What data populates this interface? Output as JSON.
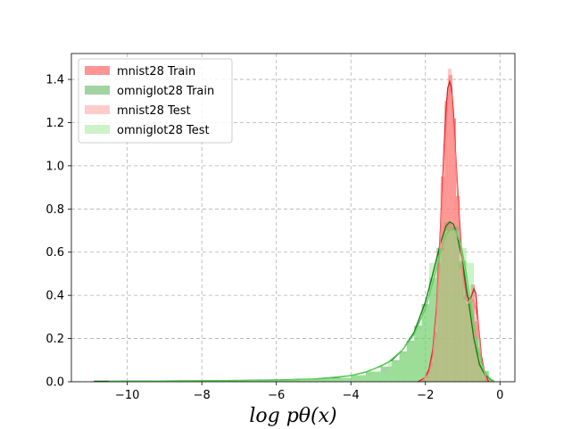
{
  "chart_data": {
    "type": "histogram-kde",
    "title": "",
    "xlabel": "log p_θ(x)",
    "xlabel_display": "log pθ(x)",
    "ylabel": "",
    "xlim": [
      -11.5,
      0.4
    ],
    "ylim": [
      0,
      1.52
    ],
    "xticks": [
      -10,
      -8,
      -6,
      -4,
      -2,
      0
    ],
    "xtick_labels": [
      "−10",
      "−8",
      "−6",
      "−4",
      "−2",
      "0"
    ],
    "yticks": [
      0.0,
      0.2,
      0.4,
      0.6,
      0.8,
      1.0,
      1.2,
      1.4
    ],
    "ytick_labels": [
      "0.0",
      "0.2",
      "0.4",
      "0.6",
      "0.8",
      "1.0",
      "1.2",
      "1.4"
    ],
    "grid": true,
    "legend_position": "top-left",
    "series": [
      {
        "name": "mnist28 Train",
        "color": "#ff4c4c",
        "kde_color": "#d62728",
        "fill_opacity": 0.6,
        "bins": [
          {
            "x0": -2.08,
            "x1": -1.98,
            "y": 0.01
          },
          {
            "x0": -1.98,
            "x1": -1.88,
            "y": 0.03
          },
          {
            "x0": -1.88,
            "x1": -1.78,
            "y": 0.09
          },
          {
            "x0": -1.78,
            "x1": -1.68,
            "y": 0.23
          },
          {
            "x0": -1.68,
            "x1": -1.58,
            "y": 0.55
          },
          {
            "x0": -1.58,
            "x1": -1.48,
            "y": 0.95
          },
          {
            "x0": -1.48,
            "x1": -1.38,
            "y": 1.3
          },
          {
            "x0": -1.38,
            "x1": -1.28,
            "y": 1.42
          },
          {
            "x0": -1.28,
            "x1": -1.18,
            "y": 1.22
          },
          {
            "x0": -1.18,
            "x1": -1.08,
            "y": 0.86
          },
          {
            "x0": -1.08,
            "x1": -0.98,
            "y": 0.55
          },
          {
            "x0": -0.98,
            "x1": -0.88,
            "y": 0.4
          },
          {
            "x0": -0.88,
            "x1": -0.78,
            "y": 0.36
          },
          {
            "x0": -0.78,
            "x1": -0.68,
            "y": 0.45
          },
          {
            "x0": -0.68,
            "x1": -0.58,
            "y": 0.28
          },
          {
            "x0": -0.58,
            "x1": -0.48,
            "y": 0.1
          },
          {
            "x0": -0.48,
            "x1": -0.38,
            "y": 0.03
          }
        ],
        "kde": {
          "x": [
            -2.2,
            -2.0,
            -1.9,
            -1.8,
            -1.7,
            -1.6,
            -1.5,
            -1.45,
            -1.4,
            -1.35,
            -1.3,
            -1.25,
            -1.2,
            -1.1,
            -1.0,
            -0.9,
            -0.8,
            -0.7,
            -0.65,
            -0.6,
            -0.5,
            -0.4,
            -0.3
          ],
          "y": [
            0.0,
            0.02,
            0.06,
            0.15,
            0.35,
            0.7,
            1.08,
            1.25,
            1.36,
            1.39,
            1.36,
            1.25,
            1.08,
            0.78,
            0.52,
            0.4,
            0.38,
            0.43,
            0.41,
            0.3,
            0.12,
            0.03,
            0.0
          ]
        }
      },
      {
        "name": "omniglot28 Train",
        "color": "#2ca02c",
        "kde_color": "#1a7a1a",
        "fill_opacity": 0.45,
        "bins": [
          {
            "x0": -10.9,
            "x1": -8.0,
            "y": 0.002
          },
          {
            "x0": -8.0,
            "x1": -6.0,
            "y": 0.004
          },
          {
            "x0": -6.0,
            "x1": -5.0,
            "y": 0.008
          },
          {
            "x0": -5.0,
            "x1": -4.5,
            "y": 0.012
          },
          {
            "x0": -4.5,
            "x1": -4.0,
            "y": 0.018
          },
          {
            "x0": -4.0,
            "x1": -3.6,
            "y": 0.03
          },
          {
            "x0": -3.6,
            "x1": -3.2,
            "y": 0.045
          },
          {
            "x0": -3.2,
            "x1": -2.9,
            "y": 0.07
          },
          {
            "x0": -2.9,
            "x1": -2.7,
            "y": 0.1
          },
          {
            "x0": -2.7,
            "x1": -2.5,
            "y": 0.14
          },
          {
            "x0": -2.5,
            "x1": -2.3,
            "y": 0.19
          },
          {
            "x0": -2.3,
            "x1": -2.1,
            "y": 0.26
          },
          {
            "x0": -2.1,
            "x1": -1.9,
            "y": 0.36
          },
          {
            "x0": -1.9,
            "x1": -1.7,
            "y": 0.48
          },
          {
            "x0": -1.7,
            "x1": -1.5,
            "y": 0.62
          },
          {
            "x0": -1.5,
            "x1": -1.3,
            "y": 0.74
          },
          {
            "x0": -1.3,
            "x1": -1.1,
            "y": 0.72
          },
          {
            "x0": -1.1,
            "x1": -0.9,
            "y": 0.56
          },
          {
            "x0": -0.9,
            "x1": -0.7,
            "y": 0.36
          },
          {
            "x0": -0.7,
            "x1": -0.5,
            "y": 0.16
          },
          {
            "x0": -0.5,
            "x1": -0.3,
            "y": 0.05
          },
          {
            "x0": -0.3,
            "x1": -0.15,
            "y": 0.01
          }
        ],
        "kde": {
          "x": [
            -10.9,
            -8.0,
            -6.0,
            -5.0,
            -4.5,
            -4.0,
            -3.6,
            -3.2,
            -2.9,
            -2.6,
            -2.3,
            -2.0,
            -1.8,
            -1.6,
            -1.45,
            -1.35,
            -1.25,
            -1.15,
            -1.0,
            -0.85,
            -0.7,
            -0.55,
            -0.4,
            -0.25,
            -0.15
          ],
          "y": [
            0.002,
            0.004,
            0.008,
            0.013,
            0.018,
            0.028,
            0.045,
            0.072,
            0.1,
            0.15,
            0.23,
            0.37,
            0.5,
            0.64,
            0.72,
            0.74,
            0.73,
            0.68,
            0.55,
            0.38,
            0.2,
            0.08,
            0.03,
            0.01,
            0.0
          ]
        }
      },
      {
        "name": "mnist28 Test",
        "color": "#ff9a96",
        "kde_color": "#ff8080",
        "fill_opacity": 0.5,
        "bins": [
          {
            "x0": -2.0,
            "x1": -1.9,
            "y": 0.02
          },
          {
            "x0": -1.9,
            "x1": -1.8,
            "y": 0.07
          },
          {
            "x0": -1.8,
            "x1": -1.7,
            "y": 0.2
          },
          {
            "x0": -1.7,
            "x1": -1.6,
            "y": 0.5
          },
          {
            "x0": -1.6,
            "x1": -1.5,
            "y": 0.92
          },
          {
            "x0": -1.5,
            "x1": -1.4,
            "y": 1.28
          },
          {
            "x0": -1.4,
            "x1": -1.3,
            "y": 1.45
          },
          {
            "x0": -1.3,
            "x1": -1.2,
            "y": 1.2
          },
          {
            "x0": -1.2,
            "x1": -1.1,
            "y": 0.82
          },
          {
            "x0": -1.1,
            "x1": -1.0,
            "y": 0.52
          },
          {
            "x0": -1.0,
            "x1": -0.9,
            "y": 0.38
          },
          {
            "x0": -0.9,
            "x1": -0.8,
            "y": 0.35
          },
          {
            "x0": -0.8,
            "x1": -0.7,
            "y": 0.4
          },
          {
            "x0": -0.7,
            "x1": -0.6,
            "y": 0.3
          },
          {
            "x0": -0.6,
            "x1": -0.5,
            "y": 0.12
          },
          {
            "x0": -0.5,
            "x1": -0.4,
            "y": 0.04
          }
        ],
        "kde": {
          "x": [
            -2.1,
            -1.9,
            -1.8,
            -1.7,
            -1.6,
            -1.5,
            -1.4,
            -1.35,
            -1.3,
            -1.2,
            -1.1,
            -1.0,
            -0.9,
            -0.8,
            -0.7,
            -0.6,
            -0.5,
            -0.35
          ],
          "y": [
            0.0,
            0.04,
            0.12,
            0.32,
            0.66,
            1.02,
            1.3,
            1.36,
            1.33,
            1.05,
            0.74,
            0.5,
            0.38,
            0.36,
            0.38,
            0.28,
            0.1,
            0.0
          ]
        }
      },
      {
        "name": "omniglot28 Test",
        "color": "#98e890",
        "kde_color": "#5cd65c",
        "fill_opacity": 0.5,
        "bins": [
          {
            "x0": -10.5,
            "x1": -8.0,
            "y": 0.002
          },
          {
            "x0": -8.0,
            "x1": -6.0,
            "y": 0.004
          },
          {
            "x0": -6.0,
            "x1": -5.0,
            "y": 0.007
          },
          {
            "x0": -5.0,
            "x1": -4.0,
            "y": 0.014
          },
          {
            "x0": -4.0,
            "x1": -3.5,
            "y": 0.03
          },
          {
            "x0": -3.5,
            "x1": -3.0,
            "y": 0.05
          },
          {
            "x0": -3.0,
            "x1": -2.7,
            "y": 0.09
          },
          {
            "x0": -2.7,
            "x1": -2.5,
            "y": 0.13
          },
          {
            "x0": -2.5,
            "x1": -2.3,
            "y": 0.18
          },
          {
            "x0": -2.3,
            "x1": -2.1,
            "y": 0.24
          },
          {
            "x0": -2.1,
            "x1": -1.9,
            "y": 0.33
          },
          {
            "x0": -1.9,
            "x1": -1.7,
            "y": 0.55
          },
          {
            "x0": -1.7,
            "x1": -1.5,
            "y": 0.61
          },
          {
            "x0": -1.5,
            "x1": -1.3,
            "y": 0.7
          },
          {
            "x0": -1.3,
            "x1": -1.1,
            "y": 0.7
          },
          {
            "x0": -1.1,
            "x1": -0.9,
            "y": 0.62
          },
          {
            "x0": -0.9,
            "x1": -0.7,
            "y": 0.55
          },
          {
            "x0": -0.7,
            "x1": -0.5,
            "y": 0.2
          },
          {
            "x0": -0.5,
            "x1": -0.3,
            "y": 0.05
          },
          {
            "x0": -0.3,
            "x1": -0.15,
            "y": 0.01
          }
        ],
        "kde": {
          "x": [
            -10.5,
            -8.0,
            -6.0,
            -5.0,
            -4.0,
            -3.5,
            -3.0,
            -2.6,
            -2.3,
            -2.0,
            -1.8,
            -1.6,
            -1.45,
            -1.3,
            -1.2,
            -1.05,
            -0.9,
            -0.75,
            -0.6,
            -0.45,
            -0.3,
            -0.15
          ],
          "y": [
            0.002,
            0.004,
            0.007,
            0.013,
            0.028,
            0.05,
            0.09,
            0.15,
            0.22,
            0.34,
            0.46,
            0.6,
            0.68,
            0.71,
            0.7,
            0.64,
            0.5,
            0.32,
            0.16,
            0.06,
            0.02,
            0.0
          ]
        }
      }
    ]
  }
}
